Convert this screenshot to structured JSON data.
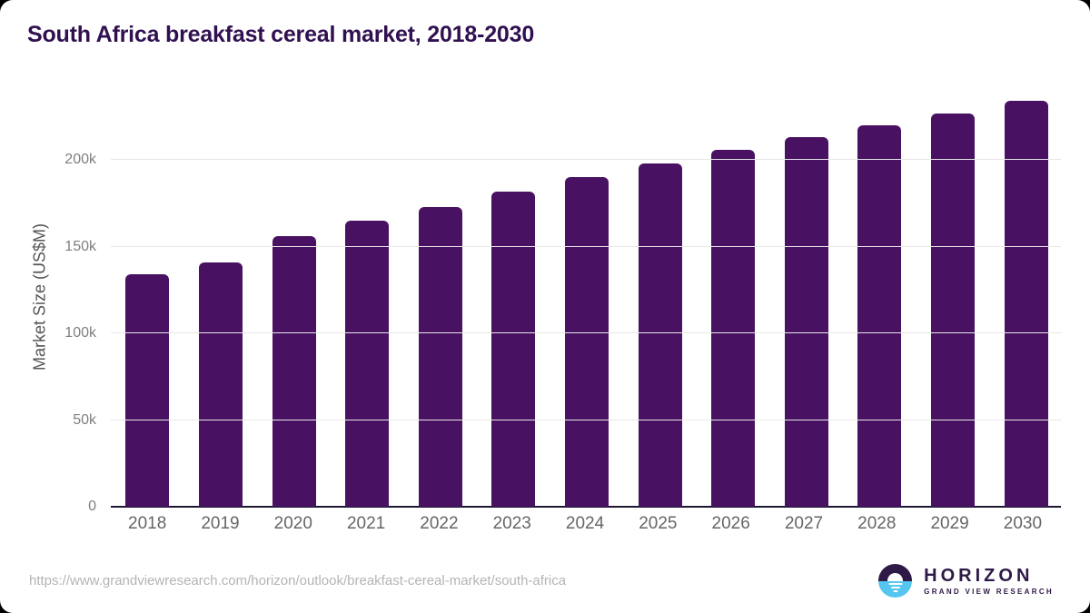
{
  "chart_data": {
    "type": "bar",
    "title": "South Africa breakfast cereal market, 2018-2030",
    "categories": [
      "2018",
      "2019",
      "2020",
      "2021",
      "2022",
      "2023",
      "2024",
      "2025",
      "2026",
      "2027",
      "2028",
      "2029",
      "2030"
    ],
    "values": [
      134000,
      141000,
      156000,
      165000,
      173000,
      182000,
      190000,
      198000,
      206000,
      213000,
      220000,
      227000,
      234000
    ],
    "xlabel": "",
    "ylabel": "Market Size (US$M)",
    "ylim": [
      0,
      242000
    ],
    "grid": true,
    "legend": "none",
    "yticks": [
      {
        "value": 0,
        "label": "0"
      },
      {
        "value": 50000,
        "label": "50k"
      },
      {
        "value": 100000,
        "label": "100k"
      },
      {
        "value": 150000,
        "label": "150k"
      },
      {
        "value": 200000,
        "label": "200k"
      }
    ],
    "bar_color": "#481161"
  },
  "footer": {
    "source_url": "https://www.grandviewresearch.com/horizon/outlook/breakfast-cereal-market/south-africa",
    "logo": {
      "name": "HORIZON",
      "subtitle": "GRAND VIEW RESEARCH"
    }
  },
  "colors": {
    "title": "#301050",
    "bar": "#481161",
    "gridline": "#e7e7e7",
    "axis_line": "#1d1830",
    "x_tick": "#666666",
    "y_tick": "#7f7f7f",
    "y_axis_title": "#555555",
    "url_text": "#b4b4b4",
    "logo_purple": "#2d1a47",
    "logo_blue": "#54c6f0",
    "background": "#ffffff"
  }
}
